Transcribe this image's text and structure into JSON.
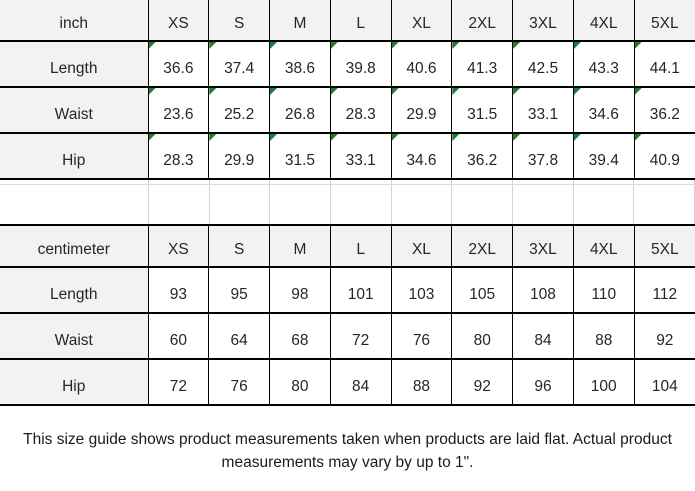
{
  "tables": [
    {
      "unit_label": "inch",
      "sizes": [
        "XS",
        "S",
        "M",
        "L",
        "XL",
        "2XL",
        "3XL",
        "4XL",
        "5XL"
      ],
      "rows": [
        {
          "label": "Length",
          "values": [
            "36.6",
            "37.4",
            "38.6",
            "39.8",
            "40.6",
            "41.3",
            "42.5",
            "43.3",
            "44.1"
          ]
        },
        {
          "label": "Waist",
          "values": [
            "23.6",
            "25.2",
            "26.8",
            "28.3",
            "29.9",
            "31.5",
            "33.1",
            "34.6",
            "36.2"
          ]
        },
        {
          "label": "Hip",
          "values": [
            "28.3",
            "29.9",
            "31.5",
            "33.1",
            "34.6",
            "36.2",
            "37.8",
            "39.4",
            "40.9"
          ]
        }
      ],
      "has_flag_triangles": true
    },
    {
      "unit_label": "centimeter",
      "sizes": [
        "XS",
        "S",
        "M",
        "L",
        "XL",
        "2XL",
        "3XL",
        "4XL",
        "5XL"
      ],
      "rows": [
        {
          "label": "Length",
          "values": [
            "93",
            "95",
            "98",
            "101",
            "103",
            "105",
            "108",
            "110",
            "112"
          ]
        },
        {
          "label": "Waist",
          "values": [
            "60",
            "64",
            "68",
            "72",
            "76",
            "80",
            "84",
            "88",
            "92"
          ]
        },
        {
          "label": "Hip",
          "values": [
            "72",
            "76",
            "80",
            "84",
            "88",
            "92",
            "96",
            "100",
            "104"
          ]
        }
      ],
      "has_flag_triangles": false
    }
  ],
  "footer": {
    "note_lines": [
      "This size guide shows product measurements taken when products are laid flat. Actual product",
      "measurements may vary by up to 1\"."
    ]
  },
  "colors": {
    "cell_fill_gray": "#f2f2f2",
    "border_black": "#000000",
    "flag_triangle_green": "#1e7b34",
    "gap_gridline_gray": "#d4d4d4",
    "text": "#262626"
  }
}
